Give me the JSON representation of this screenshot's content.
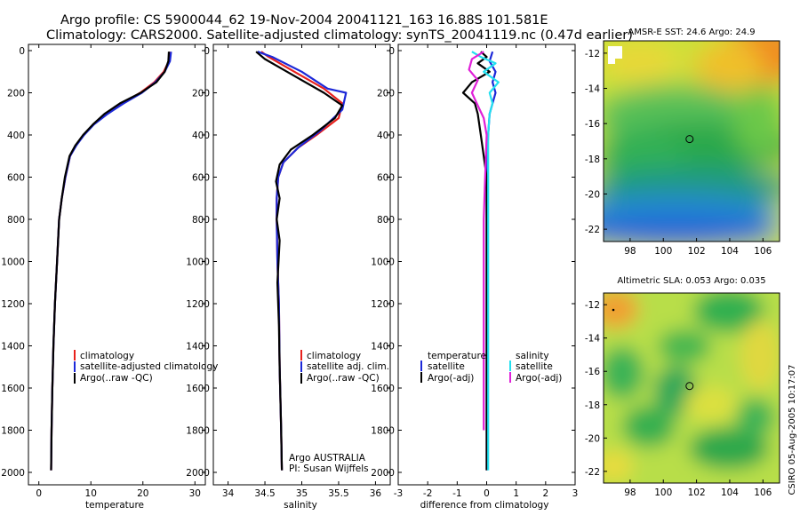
{
  "header": {
    "line1": "Argo profile: CS 5900044_62 19-Nov-2004 20041121_163 16.88S 101.581E",
    "line2": "Climatology: CARS2000. Satellite-adjusted climatology: synTS_20041119.nc (0.47d earlier)"
  },
  "colors": {
    "climatology": "#e8201c",
    "satellite": "#1c28d8",
    "argo": "#000000",
    "satellite_salinity": "#22e0f0",
    "argo_adj_salinity": "#e020d8"
  },
  "chart_data": [
    {
      "type": "line",
      "name": "temperature-profile",
      "xlabel": "temperature",
      "ylabel": "",
      "xlim": [
        -2,
        32
      ],
      "ylim": [
        2050,
        0
      ],
      "xticks": [
        0,
        10,
        20,
        30
      ],
      "yticks": [
        0,
        200,
        400,
        600,
        800,
        1000,
        1200,
        1400,
        1600,
        1800,
        2000
      ],
      "legend": [
        "climatology",
        "satellite-adjusted climatology",
        "Argo(..raw -QC)"
      ],
      "series": [
        {
          "name": "climatology",
          "color": "#e8201c",
          "x": [
            25.2,
            25.0,
            24.0,
            22.2,
            19.5,
            16.0,
            13.0,
            10.5,
            8.6,
            7.1,
            6.0,
            5.1,
            4.4,
            3.9,
            3.5,
            3.1,
            2.8,
            2.6,
            2.45,
            2.35
          ],
          "y": [
            5,
            50,
            100,
            150,
            200,
            250,
            300,
            350,
            400,
            450,
            500,
            600,
            700,
            800,
            1000,
            1200,
            1400,
            1600,
            1800,
            1990
          ]
        },
        {
          "name": "satellite",
          "color": "#1c28d8",
          "x": [
            25.4,
            25.2,
            24.2,
            22.4,
            19.8,
            16.3,
            13.2,
            10.6,
            8.7,
            7.2,
            6.0,
            5.1,
            4.4,
            3.9,
            3.5,
            3.1,
            2.8,
            2.6,
            2.45,
            2.35
          ],
          "y": [
            5,
            50,
            100,
            150,
            200,
            250,
            300,
            350,
            400,
            450,
            500,
            600,
            700,
            800,
            1000,
            1200,
            1400,
            1600,
            1800,
            1990
          ]
        },
        {
          "name": "Argo(..raw -QC)",
          "color": "#000000",
          "x": [
            25.0,
            24.9,
            24.2,
            22.6,
            19.6,
            15.6,
            12.6,
            10.4,
            8.5,
            7.0,
            5.9,
            5.0,
            4.4,
            3.9,
            3.5,
            3.1,
            2.8,
            2.6,
            2.45,
            2.35
          ],
          "y": [
            5,
            50,
            100,
            150,
            200,
            250,
            300,
            350,
            400,
            450,
            500,
            600,
            700,
            800,
            1000,
            1200,
            1400,
            1600,
            1800,
            1990
          ]
        }
      ]
    },
    {
      "type": "line",
      "name": "salinity-profile",
      "xlabel": "salinity",
      "ylabel": "",
      "xlim": [
        33.8,
        36.2
      ],
      "ylim": [
        2050,
        0
      ],
      "xticks": [
        34,
        34.5,
        35,
        35.5,
        36
      ],
      "yticks": [
        0,
        200,
        400,
        600,
        800,
        1000,
        1200,
        1400,
        1600,
        1800,
        2000
      ],
      "legend": [
        "climatology",
        "satellite adj. clim.",
        "Argo(..raw -QC)"
      ],
      "annotation": [
        "Argo AUSTRALIA",
        "PI: Susan Wijffels"
      ],
      "series": [
        {
          "name": "climatology",
          "color": "#e8201c",
          "x": [
            34.45,
            34.55,
            34.9,
            35.3,
            35.55,
            35.5,
            35.2,
            34.95,
            34.75,
            34.68,
            34.66,
            34.66,
            34.67,
            34.69,
            34.7,
            34.72,
            34.73
          ],
          "y": [
            5,
            30,
            100,
            180,
            250,
            320,
            400,
            460,
            530,
            600,
            700,
            800,
            1000,
            1200,
            1500,
            1800,
            1990
          ]
        },
        {
          "name": "satellite",
          "color": "#1c28d8",
          "x": [
            34.4,
            34.6,
            35.0,
            35.35,
            35.6,
            35.55,
            35.25,
            34.95,
            34.75,
            34.68,
            34.66,
            34.66,
            34.67,
            34.69,
            34.7,
            34.72,
            34.73
          ],
          "y": [
            5,
            30,
            100,
            180,
            200,
            280,
            380,
            460,
            530,
            600,
            700,
            800,
            1000,
            1200,
            1500,
            1800,
            1990
          ]
        },
        {
          "name": "Argo(..raw -QC)",
          "color": "#000000",
          "x": [
            34.38,
            34.5,
            34.75,
            35.0,
            35.3,
            35.55,
            35.45,
            35.15,
            34.85,
            34.7,
            34.65,
            34.7,
            34.66,
            34.7,
            34.67,
            34.69,
            34.7,
            34.72,
            34.73
          ],
          "y": [
            5,
            40,
            90,
            140,
            200,
            260,
            320,
            400,
            470,
            540,
            620,
            700,
            800,
            900,
            1100,
            1300,
            1500,
            1800,
            1990
          ]
        }
      ]
    },
    {
      "type": "line",
      "name": "difference-profile",
      "xlabel": "difference from climatology",
      "ylabel": "",
      "xlim": [
        -3,
        3
      ],
      "ylim": [
        2050,
        0
      ],
      "xticks": [
        -3,
        -2,
        -1,
        0,
        1,
        2,
        3
      ],
      "yticks": [
        0,
        200,
        400,
        600,
        800,
        1000,
        1200,
        1400,
        1600,
        1800,
        2000
      ],
      "legend_left_title": "temperature",
      "legend_left": [
        "satellite",
        "Argo(-adj)"
      ],
      "legend_right_title": "salinity",
      "legend_right": [
        "satellite",
        "Argo(-adj)"
      ],
      "series": [
        {
          "name": "temperature satellite",
          "color": "#1c28d8",
          "x": [
            0.2,
            0.1,
            0.3,
            0.2,
            0.3,
            0.2,
            0.1,
            0.05,
            0.02,
            0.0,
            0.0,
            0.0,
            0.0
          ],
          "y": [
            5,
            50,
            100,
            150,
            200,
            250,
            300,
            400,
            500,
            700,
            1000,
            1500,
            1990
          ]
        },
        {
          "name": "temperature Argo(-adj)",
          "color": "#000000",
          "x": [
            -0.2,
            0.0,
            -0.3,
            0.1,
            -0.5,
            -0.8,
            -0.4,
            -0.3,
            -0.2,
            -0.1,
            0.0,
            0.0,
            0.0,
            0.0
          ],
          "y": [
            5,
            30,
            60,
            100,
            150,
            200,
            250,
            300,
            400,
            500,
            600,
            800,
            1200,
            1990
          ]
        },
        {
          "name": "salinity satellite",
          "color": "#22e0f0",
          "x": [
            -0.5,
            -0.2,
            0.3,
            -0.1,
            0.4,
            0.1,
            0.2,
            0.1,
            0.05,
            0.05,
            0.05,
            0.05,
            0.05
          ],
          "y": [
            5,
            30,
            60,
            100,
            150,
            200,
            250,
            300,
            400,
            600,
            1000,
            1500,
            1990
          ]
        },
        {
          "name": "salinity Argo(-adj)",
          "color": "#e020d8",
          "x": [
            -0.1,
            -0.5,
            -0.6,
            -0.3,
            -0.5,
            -0.3,
            -0.1,
            0.0,
            -0.05,
            -0.1,
            -0.1,
            -0.1,
            -0.1
          ],
          "y": [
            5,
            40,
            90,
            140,
            200,
            260,
            320,
            400,
            600,
            800,
            1200,
            1600,
            1800
          ]
        }
      ]
    },
    {
      "type": "heatmap",
      "name": "sst-map",
      "title": "AMSR-E SST: 24.6 Argo: 24.9",
      "xlim": [
        96.4,
        107
      ],
      "ylim": [
        -22.7,
        -11.3
      ],
      "xticks": [
        98,
        100,
        102,
        104,
        106
      ],
      "yticks": [
        -12,
        -14,
        -16,
        -18,
        -20,
        -22
      ],
      "marker": {
        "lon": 101.581,
        "lat": -16.88
      }
    },
    {
      "type": "heatmap",
      "name": "sla-map",
      "title": "Altimetric SLA: 0.053 Argo: 0.035",
      "xlim": [
        96.4,
        107
      ],
      "ylim": [
        -22.7,
        -11.3
      ],
      "xticks": [
        98,
        100,
        102,
        104,
        106
      ],
      "yticks": [
        -12,
        -14,
        -16,
        -18,
        -20,
        -22
      ],
      "marker": {
        "lon": 101.581,
        "lat": -16.88
      }
    }
  ],
  "footer": {
    "side_label": "CSIRO 05-Aug-2005 10:17:07"
  }
}
